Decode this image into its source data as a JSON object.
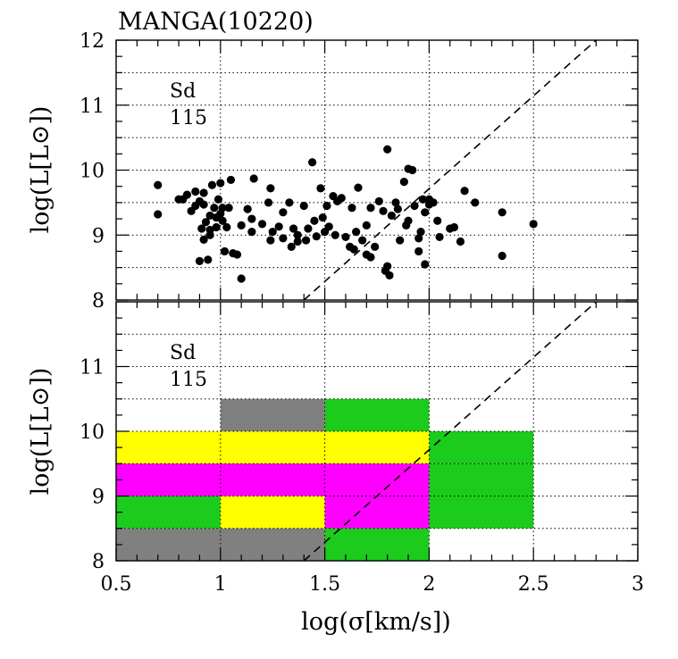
{
  "chart_data": [
    {
      "type": "scatter",
      "title": "MANGA(10220)",
      "xlabel": "log(σ[km/s])",
      "ylabel": "log(L[L⊙])",
      "xlim": [
        0.5,
        3
      ],
      "ylim": [
        8,
        12
      ],
      "x_ticks": [
        "0.5",
        "1",
        "1.5",
        "2",
        "2.5",
        "3"
      ],
      "y_ticks": [
        "8",
        "9",
        "10",
        "11",
        "12"
      ],
      "grid": true,
      "annotation_type": "Sd",
      "annotation_count": "115",
      "reference_line": {
        "style": "dashed",
        "points": [
          [
            1.4,
            8.0
          ],
          [
            2.8,
            12.0
          ]
        ]
      },
      "points": [
        [
          0.7,
          9.77
        ],
        [
          0.7,
          9.32
        ],
        [
          0.8,
          9.55
        ],
        [
          0.82,
          9.55
        ],
        [
          0.84,
          9.62
        ],
        [
          0.86,
          9.37
        ],
        [
          0.88,
          9.67
        ],
        [
          0.9,
          9.52
        ],
        [
          0.9,
          8.6
        ],
        [
          0.91,
          9.1
        ],
        [
          0.92,
          9.47
        ],
        [
          0.92,
          9.65
        ],
        [
          0.92,
          8.93
        ],
        [
          0.93,
          9.2
        ],
        [
          0.94,
          8.62
        ],
        [
          0.95,
          9.3
        ],
        [
          0.95,
          9.08
        ],
        [
          0.96,
          9.77
        ],
        [
          0.97,
          9.42
        ],
        [
          0.98,
          9.12
        ],
        [
          0.98,
          9.27
        ],
        [
          0.99,
          9.55
        ],
        [
          1.0,
          9.8
        ],
        [
          1.0,
          9.33
        ],
        [
          1.01,
          9.42
        ],
        [
          1.01,
          9.22
        ],
        [
          1.02,
          8.75
        ],
        [
          1.03,
          9.12
        ],
        [
          1.04,
          9.42
        ],
        [
          1.05,
          9.85
        ],
        [
          1.06,
          8.72
        ],
        [
          1.08,
          8.7
        ],
        [
          1.1,
          9.15
        ],
        [
          1.1,
          8.33
        ],
        [
          1.13,
          9.4
        ],
        [
          1.15,
          9.05
        ],
        [
          1.16,
          9.87
        ],
        [
          1.2,
          9.17
        ],
        [
          1.23,
          9.5
        ],
        [
          1.24,
          9.72
        ],
        [
          1.24,
          8.92
        ],
        [
          1.28,
          9.13
        ],
        [
          1.3,
          9.35
        ],
        [
          1.33,
          9.5
        ],
        [
          1.34,
          8.82
        ],
        [
          1.37,
          9.0
        ],
        [
          1.37,
          8.9
        ],
        [
          1.4,
          9.45
        ],
        [
          1.41,
          8.92
        ],
        [
          1.42,
          9.1
        ],
        [
          1.44,
          10.12
        ],
        [
          1.45,
          9.22
        ],
        [
          1.46,
          8.98
        ],
        [
          1.48,
          9.72
        ],
        [
          1.49,
          9.27
        ],
        [
          1.5,
          9.05
        ],
        [
          1.51,
          9.45
        ],
        [
          1.52,
          9.13
        ],
        [
          1.54,
          9.6
        ],
        [
          1.56,
          9.52
        ],
        [
          1.58,
          9.57
        ],
        [
          1.6,
          8.97
        ],
        [
          1.62,
          8.82
        ],
        [
          1.63,
          9.42
        ],
        [
          1.64,
          8.78
        ],
        [
          1.66,
          9.73
        ],
        [
          1.68,
          8.92
        ],
        [
          1.7,
          8.7
        ],
        [
          1.72,
          9.42
        ],
        [
          1.72,
          8.66
        ],
        [
          1.74,
          8.82
        ],
        [
          1.76,
          9.52
        ],
        [
          1.78,
          9.37
        ],
        [
          1.79,
          8.45
        ],
        [
          1.8,
          8.52
        ],
        [
          1.8,
          10.32
        ],
        [
          1.81,
          8.38
        ],
        [
          1.82,
          9.3
        ],
        [
          1.84,
          9.5
        ],
        [
          1.86,
          8.92
        ],
        [
          1.88,
          9.82
        ],
        [
          1.89,
          9.15
        ],
        [
          1.9,
          10.02
        ],
        [
          1.9,
          9.22
        ],
        [
          1.92,
          10.0
        ],
        [
          1.93,
          9.45
        ],
        [
          1.95,
          8.75
        ],
        [
          1.96,
          9.05
        ],
        [
          1.97,
          9.55
        ],
        [
          1.98,
          8.55
        ],
        [
          1.98,
          9.35
        ],
        [
          2.0,
          9.47
        ],
        [
          2.02,
          9.5
        ],
        [
          2.04,
          9.22
        ],
        [
          2.05,
          8.97
        ],
        [
          2.1,
          9.1
        ],
        [
          2.12,
          9.12
        ],
        [
          2.15,
          8.9
        ],
        [
          2.17,
          9.68
        ],
        [
          2.22,
          9.5
        ],
        [
          2.35,
          9.35
        ],
        [
          2.35,
          8.68
        ],
        [
          2.5,
          9.17
        ],
        [
          1.3,
          8.95
        ],
        [
          1.55,
          9.0
        ],
        [
          1.95,
          8.95
        ],
        [
          0.95,
          9.0
        ],
        [
          1.7,
          9.15
        ],
        [
          2.0,
          9.55
        ],
        [
          1.35,
          9.1
        ],
        [
          1.85,
          9.4
        ],
        [
          1.15,
          9.25
        ],
        [
          1.65,
          9.05
        ],
        [
          0.88,
          9.45
        ],
        [
          1.25,
          9.05
        ]
      ]
    },
    {
      "type": "heatmap",
      "xlabel": "log(σ[km/s])",
      "ylabel": "log(L[L⊙])",
      "xlim": [
        0.5,
        3
      ],
      "ylim": [
        8,
        12
      ],
      "x_ticks": [
        "0.5",
        "1",
        "1.5",
        "2",
        "2.5",
        "3"
      ],
      "y_ticks": [
        "8",
        "9",
        "10",
        "11"
      ],
      "grid": true,
      "annotation_type": "Sd",
      "annotation_count": "115",
      "reference_line": {
        "style": "dashed",
        "points": [
          [
            1.4,
            8.0
          ],
          [
            2.8,
            12.0
          ]
        ]
      },
      "palette": {
        "gray": "#808080",
        "green": "#1ccc1c",
        "yellow": "#ffff00",
        "magenta": "#ff00ff"
      },
      "cells": [
        {
          "x0": 1.0,
          "x1": 1.5,
          "y0": 10.0,
          "y1": 10.5,
          "color": "gray"
        },
        {
          "x0": 1.5,
          "x1": 2.0,
          "y0": 10.0,
          "y1": 10.5,
          "color": "green"
        },
        {
          "x0": 0.5,
          "x1": 2.0,
          "y0": 9.5,
          "y1": 10.0,
          "color": "yellow"
        },
        {
          "x0": 2.0,
          "x1": 2.5,
          "y0": 9.5,
          "y1": 10.0,
          "color": "green"
        },
        {
          "x0": 0.5,
          "x1": 2.0,
          "y0": 9.0,
          "y1": 9.5,
          "color": "magenta"
        },
        {
          "x0": 2.0,
          "x1": 2.5,
          "y0": 9.0,
          "y1": 9.5,
          "color": "green"
        },
        {
          "x0": 0.5,
          "x1": 1.0,
          "y0": 8.5,
          "y1": 9.0,
          "color": "green"
        },
        {
          "x0": 1.0,
          "x1": 1.5,
          "y0": 8.5,
          "y1": 9.0,
          "color": "yellow"
        },
        {
          "x0": 1.5,
          "x1": 2.0,
          "y0": 8.5,
          "y1": 9.0,
          "color": "magenta"
        },
        {
          "x0": 2.0,
          "x1": 2.5,
          "y0": 8.5,
          "y1": 9.0,
          "color": "green"
        },
        {
          "x0": 0.5,
          "x1": 1.5,
          "y0": 8.0,
          "y1": 8.5,
          "color": "gray"
        },
        {
          "x0": 1.5,
          "x1": 2.0,
          "y0": 8.0,
          "y1": 8.5,
          "color": "green"
        }
      ]
    }
  ]
}
